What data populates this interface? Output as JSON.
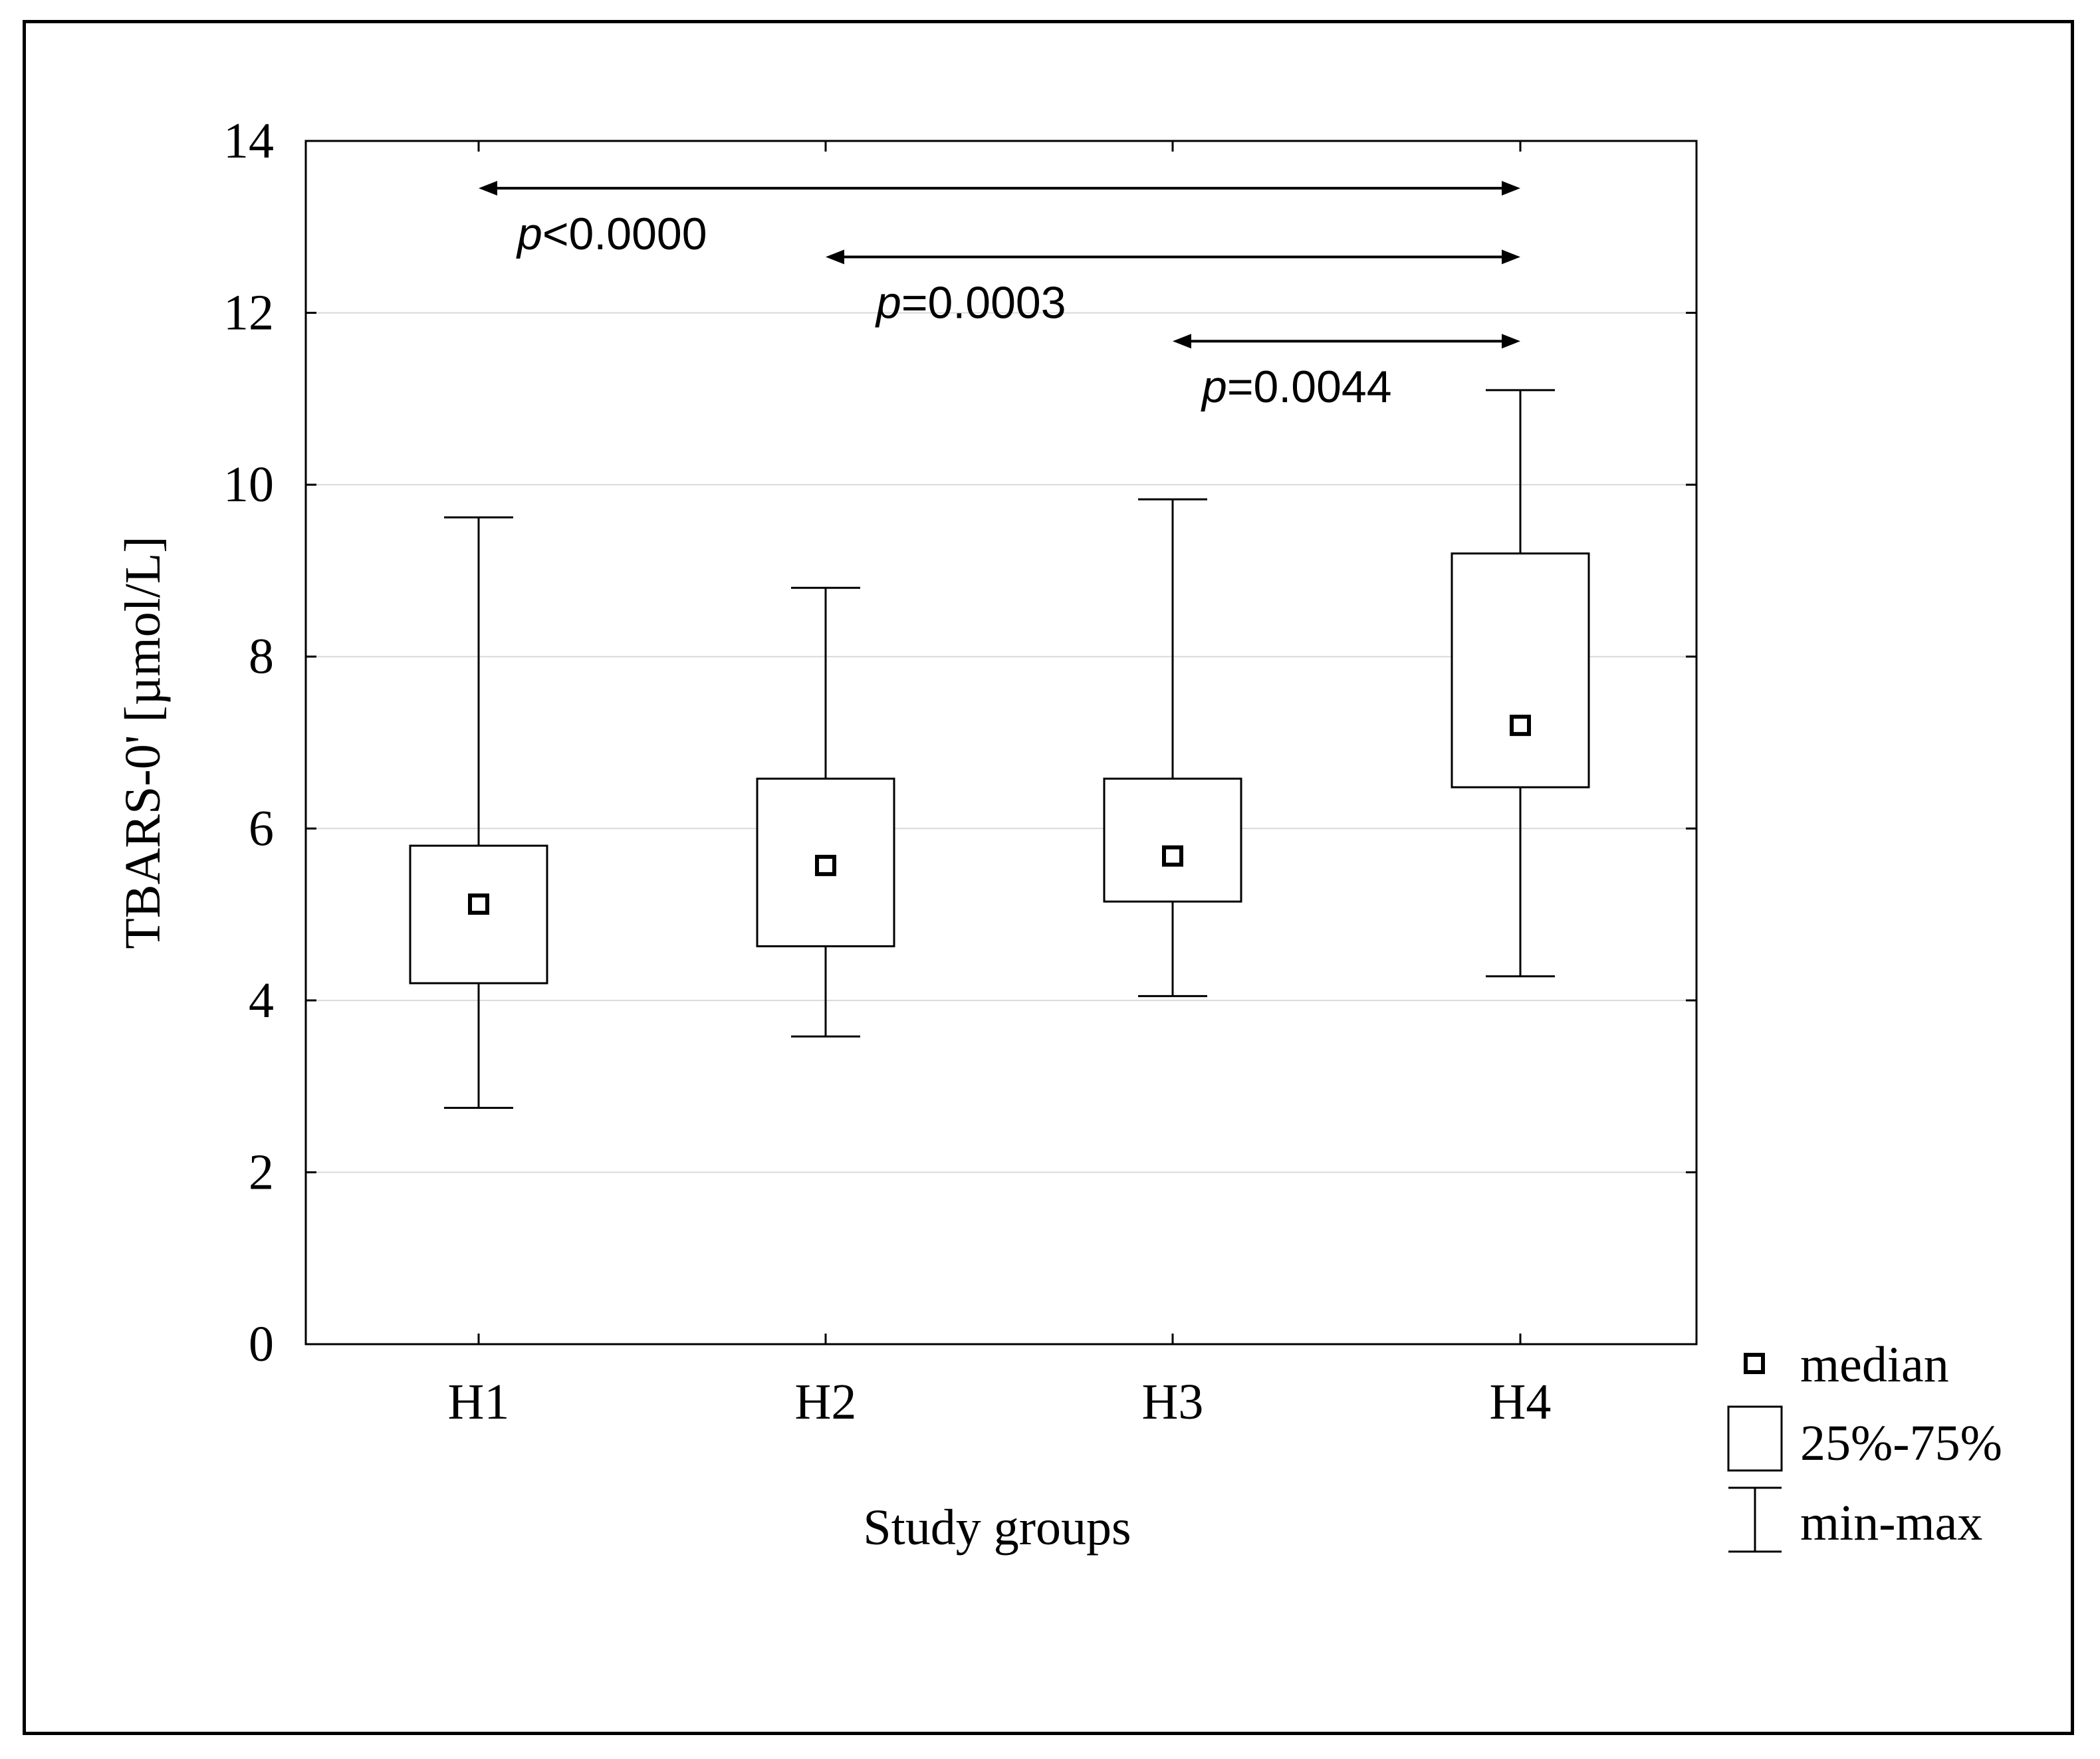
{
  "chart_data": {
    "type": "box",
    "title": "",
    "xlabel": "Study groups",
    "ylabel": "TBARS-0' [µmol/L]",
    "ylim": [
      0,
      14
    ],
    "yticks": [
      0,
      2,
      4,
      6,
      8,
      10,
      12,
      14
    ],
    "grid": true,
    "categories": [
      "H1",
      "H2",
      "H3",
      "H4"
    ],
    "boxes": [
      {
        "group": "H1",
        "min": 2.75,
        "q1": 4.2,
        "median": 5.12,
        "q3": 5.8,
        "max": 9.62
      },
      {
        "group": "H2",
        "min": 3.58,
        "q1": 4.63,
        "median": 5.57,
        "q3": 6.58,
        "max": 8.8
      },
      {
        "group": "H3",
        "min": 4.05,
        "q1": 5.15,
        "median": 5.68,
        "q3": 6.58,
        "max": 9.83
      },
      {
        "group": "H4",
        "min": 4.28,
        "q1": 6.48,
        "median": 7.2,
        "q3": 9.2,
        "max": 11.1
      }
    ],
    "comparisons": [
      {
        "from": "H1",
        "to": "H4",
        "y": 13.45,
        "p_prefix": "p",
        "p_text": "<0.0000"
      },
      {
        "from": "H2",
        "to": "H4",
        "y": 12.65,
        "p_prefix": "p",
        "p_text": "=0.0003"
      },
      {
        "from": "H3",
        "to": "H4",
        "y": 11.67,
        "p_prefix": "p",
        "p_text": "=0.0044"
      }
    ],
    "legend": {
      "position": "bottom-right",
      "items": [
        {
          "symbol": "median-marker",
          "label": "median"
        },
        {
          "symbol": "box",
          "label": "25%-75%"
        },
        {
          "symbol": "whisker",
          "label": "min-max"
        }
      ]
    },
    "colors": {
      "line": "#000000",
      "grid": "#d9d9d9",
      "background": "#ffffff"
    }
  }
}
